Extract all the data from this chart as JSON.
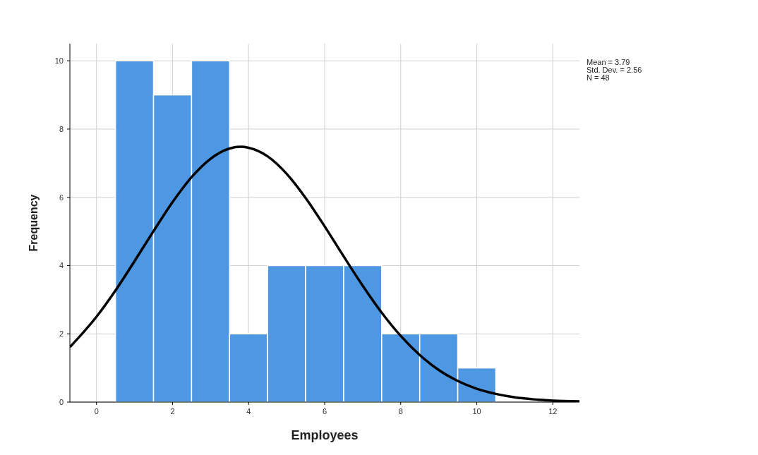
{
  "chart_data": {
    "type": "histogram",
    "xlabel": "Employees",
    "ylabel": "Frequency",
    "bins": [
      0.5,
      1.5,
      2.5,
      3.5,
      4.5,
      5.5,
      6.5,
      7.5,
      8.5,
      9.5,
      10.5
    ],
    "values": [
      10,
      9,
      10,
      2,
      4,
      4,
      4,
      2,
      2,
      1
    ],
    "color": "#4e97e3",
    "series": [
      {
        "type": "line",
        "color": "#000000",
        "x": [
          -0.7,
          0,
          0.5,
          1,
          1.5,
          2,
          2.5,
          3,
          3.5,
          3.79,
          4,
          4.5,
          5,
          5.5,
          6,
          6.5,
          7,
          7.5,
          8,
          8.5,
          9,
          9.5,
          10,
          10.5,
          11,
          11.5,
          12,
          12.7
        ],
        "values": [
          1.61,
          2.5,
          3.27,
          4.13,
          5.01,
          5.86,
          6.59,
          7.13,
          7.43,
          7.48,
          7.45,
          7.2,
          6.69,
          5.98,
          5.15,
          4.27,
          3.41,
          2.62,
          1.94,
          1.38,
          0.94,
          0.62,
          0.39,
          0.24,
          0.14,
          0.08,
          0.04,
          0.02
        ]
      }
    ],
    "xlim": [
      -0.7,
      12.7
    ],
    "xticks": [
      0,
      2,
      4,
      6,
      8,
      10,
      12
    ],
    "ylim": [
      0,
      10.5
    ],
    "yticks": [
      0,
      2,
      4,
      6,
      8,
      10
    ],
    "grid": true,
    "annotations": [
      "Mean = 3.79",
      "Std. Dev. = 2.56",
      "N = 48"
    ]
  }
}
